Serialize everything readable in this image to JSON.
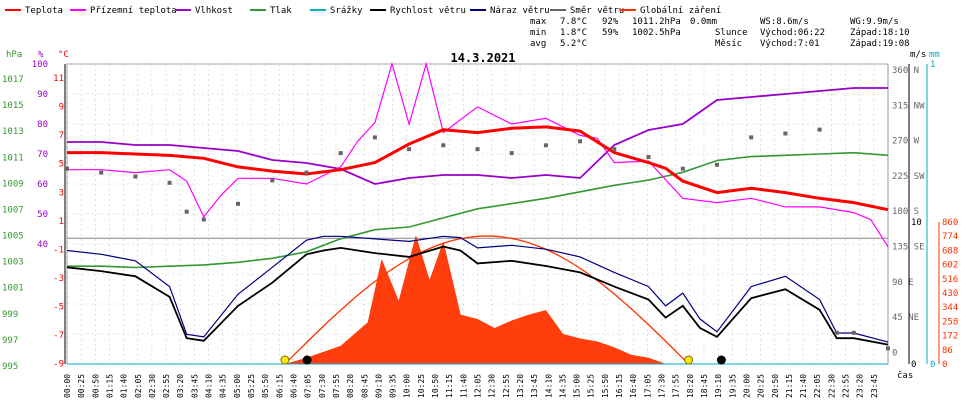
{
  "date_title": "14.3.2021",
  "legend": [
    {
      "label": "Teplota",
      "color": "#ff0000"
    },
    {
      "label": "Přízemní teplota",
      "color": "#ff00ff"
    },
    {
      "label": "Vlhkost",
      "color": "#9900cc"
    },
    {
      "label": "Tlak",
      "color": "#339933"
    },
    {
      "label": "Srážky",
      "color": "#00aacc"
    },
    {
      "label": "Rychlost větru",
      "color": "#000000"
    },
    {
      "label": "Náraz větru",
      "color": "#000080"
    },
    {
      "label": "Směr větru",
      "color": "#666666"
    },
    {
      "label": "Globální záření",
      "color": "#ff3300"
    }
  ],
  "stats": {
    "max": {
      "label": "max",
      "temp": "7.8°C",
      "hum": "92%",
      "press": "1011.2hPa",
      "rain": "0.0mm"
    },
    "min": {
      "label": "min",
      "temp": "1.8°C",
      "hum": "59%",
      "press": "1002.5hPa"
    },
    "avg": {
      "label": "avg",
      "temp": "5.2°C"
    }
  },
  "wind_info": {
    "ws": "WS:8.6m/s",
    "wg": "WG:9.9m/s"
  },
  "sun": {
    "label": "Slunce",
    "rise": "Východ:06:22",
    "set": "Západ:18:10"
  },
  "moon": {
    "label": "Měsíc",
    "rise": "Východ:7:01",
    "set": "Západ:19:08"
  },
  "axis_units": {
    "hpa": "hPa",
    "pct": "%",
    "degc": "°C",
    "ms": "m/s",
    "mm": "mm",
    "time": "čas"
  },
  "colors": {
    "temp": "#ff0000",
    "dew": "#ff00ff",
    "hum": "#9900cc",
    "press": "#339933",
    "rain": "#00aacc",
    "wind": "#000000",
    "gust": "#000080",
    "dir": "#666666",
    "rad": "#ff3300",
    "grid": "#cccccc"
  },
  "chart_data": {
    "type": "line",
    "title": "14.3.2021",
    "x_ticks": [
      "00:00",
      "00:25",
      "00:50",
      "01:15",
      "01:40",
      "02:05",
      "02:30",
      "02:55",
      "03:20",
      "03:45",
      "04:10",
      "04:35",
      "05:00",
      "05:25",
      "05:50",
      "06:15",
      "06:40",
      "07:05",
      "07:30",
      "07:55",
      "08:20",
      "08:45",
      "09:10",
      "09:35",
      "10:00",
      "10:25",
      "10:50",
      "11:15",
      "11:40",
      "12:05",
      "12:30",
      "12:55",
      "13:20",
      "13:45",
      "14:10",
      "14:35",
      "15:00",
      "15:25",
      "15:50",
      "16:15",
      "16:40",
      "17:05",
      "17:30",
      "17:55",
      "18:20",
      "18:45",
      "19:10",
      "19:35",
      "20:00",
      "20:25",
      "20:50",
      "21:15",
      "21:40",
      "22:05",
      "22:30",
      "22:55",
      "23:20",
      "23:45"
    ],
    "axes": {
      "pressure_hpa": {
        "ticks": [
          "1017",
          "1015",
          "1013",
          "1011",
          "1009",
          "1007",
          "1005",
          "1003",
          "1001",
          "999",
          "997",
          "995"
        ]
      },
      "humidity_pct": {
        "ticks": [
          "100",
          "90",
          "80",
          "70",
          "60",
          "50",
          "40"
        ]
      },
      "temperature_c": {
        "ticks": [
          "11",
          "9",
          "7",
          "5",
          "3",
          "1",
          "-1",
          "-3",
          "-5",
          "-7",
          "-9"
        ]
      },
      "wind_ms": {
        "ticks": [
          "10",
          "0"
        ]
      },
      "rain_mm": {
        "ticks": [
          "1",
          "0"
        ]
      },
      "wind_dir": {
        "ticks": [
          "360 N",
          "315 NW",
          "270 W",
          "225 SW",
          "180 S",
          "135 SE",
          "90 E",
          "45 NE",
          "0"
        ]
      },
      "radiation": {
        "ticks": [
          "860",
          "774",
          "688",
          "602",
          "516",
          "430",
          "344",
          "258",
          "172",
          "86",
          "0"
        ]
      }
    },
    "series": [
      {
        "name": "Teplota",
        "unit": "°C",
        "x_hours": [
          0,
          1,
          2,
          3,
          4,
          5,
          6,
          7,
          8,
          9,
          10,
          11,
          12,
          13,
          14,
          15,
          16,
          17,
          17.5,
          18,
          19,
          20,
          21,
          22,
          23,
          24
        ],
        "values": [
          5.8,
          5.8,
          5.7,
          5.6,
          5.4,
          4.8,
          4.5,
          4.3,
          4.6,
          5.1,
          6.4,
          7.4,
          7.2,
          7.5,
          7.6,
          7.3,
          5.8,
          5.1,
          4.7,
          3.8,
          3.0,
          3.3,
          3.0,
          2.6,
          2.3,
          1.8
        ]
      },
      {
        "name": "Přízemní teplota",
        "unit": "°C",
        "x_hours": [
          0,
          1,
          2,
          3,
          3.5,
          4,
          4.5,
          5,
          6,
          7,
          8,
          8.5,
          9,
          9.5,
          10,
          10.5,
          11,
          12,
          13,
          14,
          15,
          15.5,
          16,
          17,
          18,
          19,
          20,
          21,
          22,
          23,
          23.5,
          24
        ],
        "values": [
          4.6,
          4.6,
          4.4,
          4.6,
          3.8,
          1.3,
          2.8,
          4.0,
          4.0,
          3.6,
          4.8,
          6.6,
          7.9,
          12.0,
          7.8,
          12.0,
          7.2,
          9.0,
          7.8,
          8.2,
          7.0,
          6.8,
          5.1,
          5.2,
          2.6,
          2.3,
          2.6,
          2.0,
          2.0,
          1.6,
          1.1,
          -0.8
        ]
      },
      {
        "name": "Vlhkost",
        "unit": "%",
        "x_hours": [
          0,
          1,
          2,
          3,
          4,
          5,
          6,
          7,
          8,
          9,
          10,
          11,
          12,
          13,
          14,
          15,
          16,
          17,
          18,
          19,
          20,
          21,
          22,
          23,
          24
        ],
        "values": [
          74,
          74,
          73,
          73,
          72,
          71,
          68,
          67,
          65,
          60,
          62,
          63,
          63,
          62,
          63,
          62,
          73,
          78,
          80,
          88,
          89,
          90,
          91,
          92,
          92
        ]
      },
      {
        "name": "Tlak",
        "unit": "hPa",
        "x_hours": [
          0,
          1,
          2,
          3,
          4,
          5,
          6,
          7,
          8,
          9,
          10,
          11,
          12,
          13,
          14,
          15,
          16,
          17,
          18,
          19,
          20,
          21,
          22,
          23,
          24
        ],
        "values": [
          1002.5,
          1002.5,
          1002.4,
          1002.5,
          1002.6,
          1002.8,
          1003.1,
          1003.6,
          1004.6,
          1005.3,
          1005.5,
          1006.2,
          1006.9,
          1007.3,
          1007.7,
          1008.2,
          1008.7,
          1009.1,
          1009.7,
          1010.6,
          1010.9,
          1011.0,
          1011.1,
          1011.2,
          1011.0
        ]
      },
      {
        "name": "Rychlost větru",
        "unit": "m/s",
        "x_hours": [
          0,
          1,
          2,
          3,
          3.5,
          4,
          5,
          6,
          7,
          7.5,
          8,
          9,
          10,
          11,
          11.5,
          12,
          13,
          14,
          15,
          16,
          17,
          17.5,
          18,
          18.5,
          19,
          20,
          21,
          22,
          22.5,
          23,
          24
        ],
        "values": [
          7.5,
          7.2,
          6.8,
          5.2,
          2.0,
          1.8,
          4.5,
          6.3,
          8.5,
          8.8,
          9.0,
          8.6,
          8.3,
          9.1,
          8.8,
          7.8,
          8.0,
          7.6,
          7.1,
          6.0,
          5.0,
          3.6,
          4.5,
          2.8,
          2.1,
          5.1,
          5.8,
          4.2,
          2.0,
          2.0,
          1.5
        ]
      },
      {
        "name": "Náraz větru",
        "unit": "m/s",
        "x_hours": [
          0,
          1,
          2,
          3,
          3.5,
          4,
          5,
          6,
          7,
          7.5,
          8,
          9,
          10,
          11,
          11.5,
          12,
          13,
          14,
          15,
          16,
          17,
          17.5,
          18,
          18.5,
          19,
          20,
          21,
          22,
          22.5,
          23,
          24
        ],
        "values": [
          8.8,
          8.5,
          8.0,
          6.0,
          2.3,
          2.1,
          5.4,
          7.5,
          9.6,
          9.9,
          9.9,
          9.7,
          9.5,
          9.9,
          9.8,
          9.0,
          9.2,
          8.9,
          8.3,
          7.1,
          6.0,
          4.5,
          5.5,
          3.5,
          2.5,
          6.0,
          6.8,
          5.0,
          2.4,
          2.4,
          1.7
        ]
      },
      {
        "name": "Směr větru",
        "unit": "°",
        "x_hours": [
          0,
          1,
          2,
          3,
          3.5,
          4,
          5,
          6,
          7,
          8,
          9,
          10,
          11,
          12,
          13,
          14,
          15,
          16,
          17,
          18,
          19,
          20,
          21,
          22,
          22.5,
          23,
          24
        ],
        "values": [
          250,
          245,
          240,
          232,
          195,
          185,
          205,
          235,
          245,
          270,
          290,
          275,
          280,
          275,
          270,
          280,
          285,
          275,
          265,
          250,
          255,
          290,
          295,
          300,
          40,
          40,
          20
        ]
      },
      {
        "name": "Globální záření",
        "unit": "W/m²",
        "x_hours": [
          6.4,
          7,
          8,
          8.8,
          9.2,
          9.7,
          10.2,
          10.6,
          11,
          11.5,
          12,
          12.5,
          13,
          13.5,
          14,
          14.5,
          15,
          15.5,
          16,
          16.5,
          17,
          17.5
        ],
        "values": [
          0,
          40,
          120,
          280,
          700,
          420,
          860,
          560,
          820,
          330,
          300,
          240,
          290,
          330,
          360,
          200,
          170,
          150,
          110,
          60,
          40,
          0
        ]
      },
      {
        "name": "Srážky",
        "unit": "mm",
        "x_hours": [
          0,
          24
        ],
        "values": [
          0,
          0
        ]
      }
    ],
    "sun_markers": [
      {
        "x_hour": 6.37
      },
      {
        "x_hour": 18.17
      }
    ],
    "moon_markers": [
      {
        "x_hour": 7.02
      },
      {
        "x_hour": 19.13
      }
    ]
  }
}
